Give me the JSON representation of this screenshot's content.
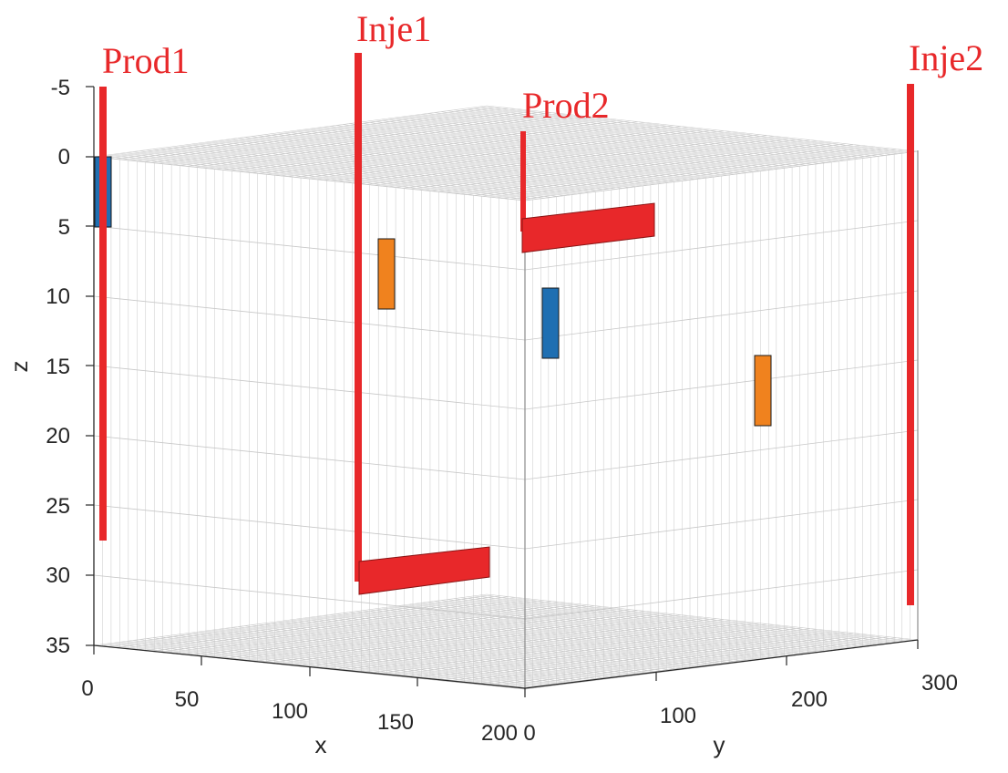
{
  "wells": [
    {
      "id": "prod1",
      "label": "Prod1"
    },
    {
      "id": "inje1",
      "label": "Inje1"
    },
    {
      "id": "prod2",
      "label": "Prod2"
    },
    {
      "id": "inje2",
      "label": "Inje2"
    }
  ],
  "axes": {
    "z": {
      "title": "z",
      "ticks": [
        "-5",
        "0",
        "5",
        "10",
        "15",
        "20",
        "25",
        "30",
        "35"
      ]
    },
    "x": {
      "title": "x",
      "ticks": [
        "0",
        "50",
        "100",
        "150",
        "200"
      ]
    },
    "y": {
      "title": "y",
      "ticks": [
        "0",
        "100",
        "200",
        "300"
      ]
    }
  },
  "colors": {
    "well": "#e8282a",
    "fracture_blue": "#1f6fb2",
    "fracture_orange": "#f0821e",
    "grid": "#c8c8c8",
    "box_edge": "#8c8c8c"
  }
}
